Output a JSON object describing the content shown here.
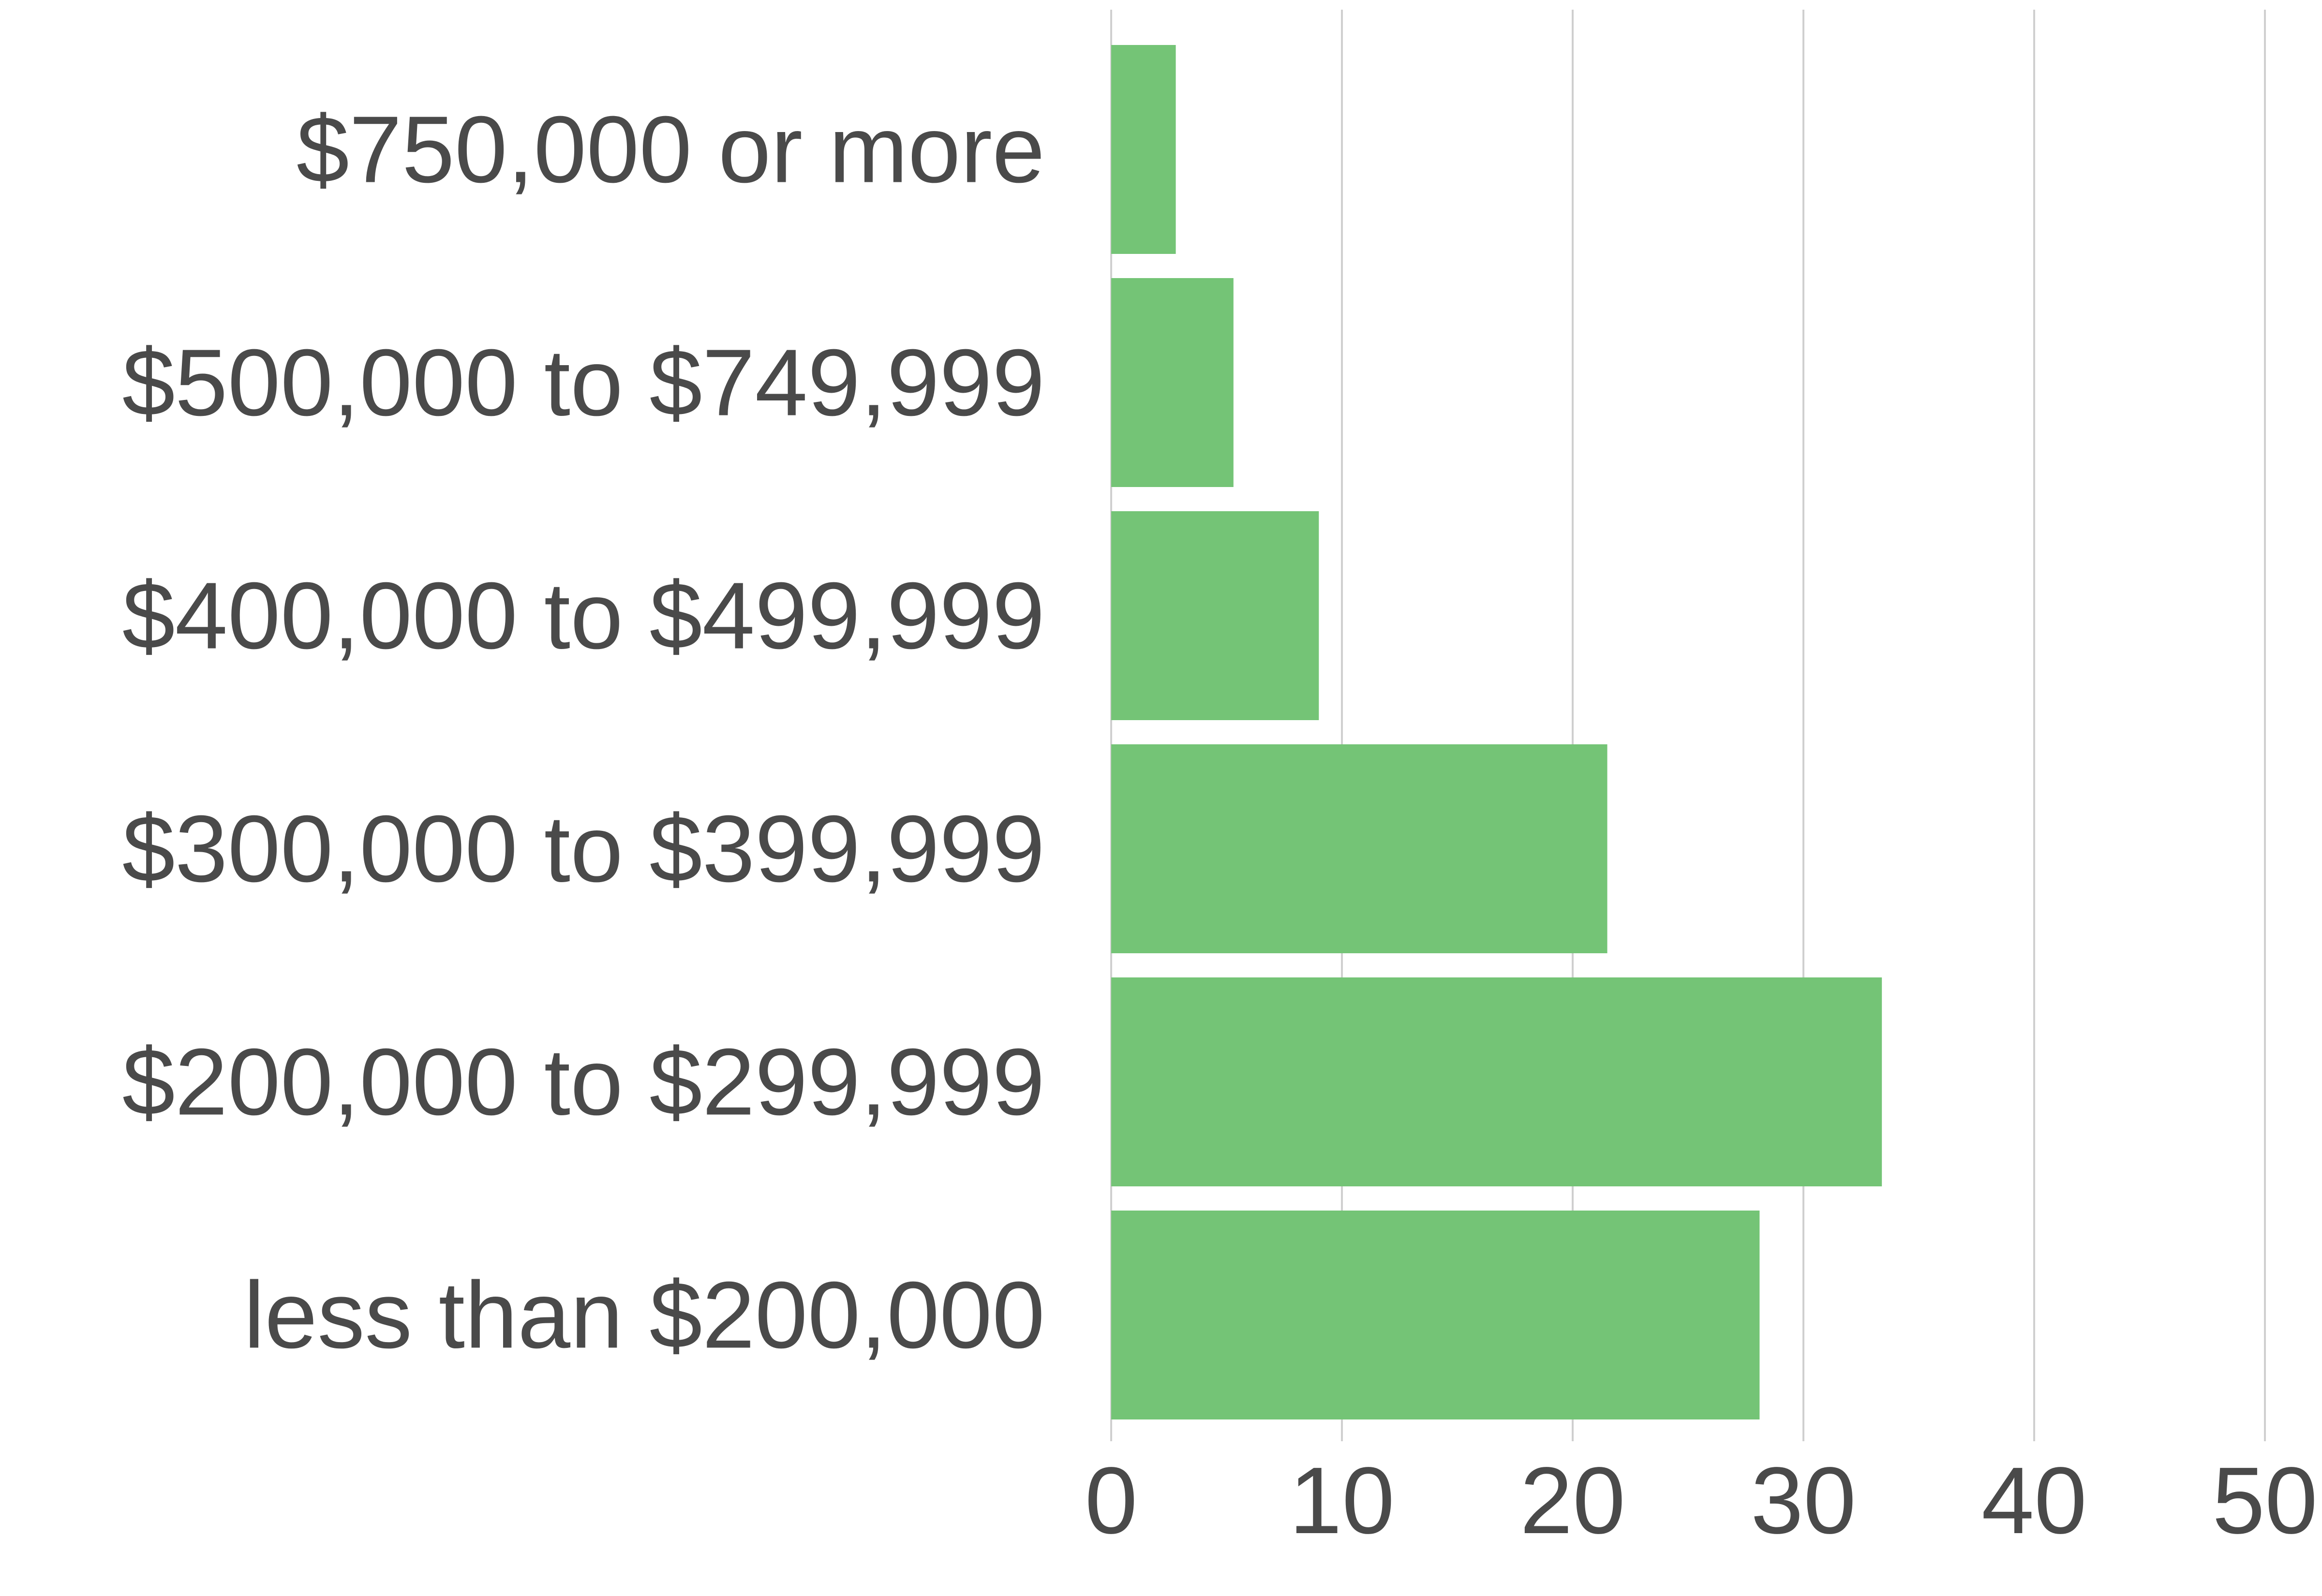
{
  "chart_data": {
    "type": "bar",
    "orientation": "horizontal",
    "title": "",
    "xlabel": "",
    "ylabel": "",
    "categories": [
      "$750,000 or more",
      "$500,000 to $749,999",
      "$400,000 to $499,999",
      "$300,000 to $399,999",
      "$200,000 to $299,999",
      "less than $200,000"
    ],
    "values": [
      2.8,
      5.3,
      9.0,
      21.5,
      33.4,
      28.1
    ],
    "xlim": [
      0,
      50
    ],
    "xticks": [
      "0",
      "10",
      "20",
      "30",
      "40",
      "50"
    ],
    "grid": "vertical",
    "legend": "none",
    "bar_color": "#74c476"
  }
}
